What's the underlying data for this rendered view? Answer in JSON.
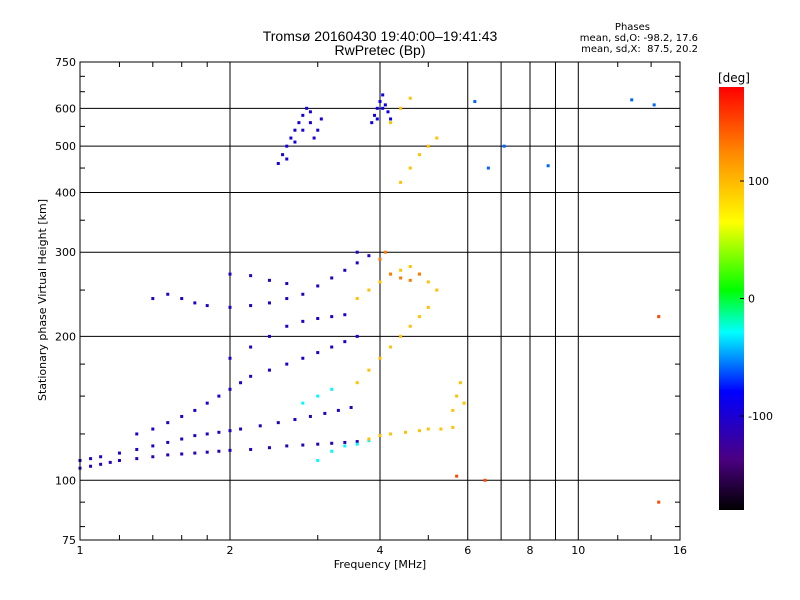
{
  "header": {
    "title": "Tromsø 20160430 19:40:00–19:41:43",
    "subtitle": "RwPretec (Bp)"
  },
  "phase_info": {
    "heading": "Phases",
    "line_o": "mean, sd,O: -98.2, 17.6",
    "line_x": "mean, sd,X:  87.5, 20.2"
  },
  "chart_data": {
    "type": "scatter",
    "xlabel": "Frequency [MHz]",
    "ylabel": "Stationary phase Virtual Height [km]",
    "x_scale": "log",
    "y_scale": "log",
    "xlim": [
      1,
      16
    ],
    "ylim": [
      75,
      750
    ],
    "x_ticks": [
      1,
      2,
      4,
      6,
      8,
      10,
      16
    ],
    "x_tick_labels": [
      "1",
      "2",
      "4",
      "6",
      "8",
      "10",
      "16"
    ],
    "x_gridlines": [
      1,
      2,
      4,
      6,
      7,
      8,
      9,
      10,
      16
    ],
    "y_ticks": [
      75,
      100,
      200,
      300,
      400,
      500,
      600,
      750
    ],
    "y_tick_labels": [
      "75",
      "100",
      "200",
      "300",
      "400",
      "500",
      "600",
      "750"
    ],
    "grid": true,
    "colorbar": {
      "label": "[deg]",
      "range": [
        -180,
        180
      ],
      "ticks": [
        100,
        0,
        -100
      ],
      "tick_labels": [
        "100",
        "0",
        "-100"
      ]
    },
    "series": [
      {
        "phase": -110,
        "points": [
          [
            1.0,
            106
          ],
          [
            1.05,
            107
          ],
          [
            1.1,
            108
          ],
          [
            1.15,
            109
          ],
          [
            1.2,
            110
          ],
          [
            1.3,
            111
          ],
          [
            1.4,
            112
          ],
          [
            1.5,
            113
          ],
          [
            1.6,
            113.5
          ],
          [
            1.7,
            114
          ],
          [
            1.8,
            114.5
          ],
          [
            1.9,
            115
          ],
          [
            2.0,
            115.5
          ],
          [
            2.2,
            116
          ],
          [
            2.4,
            117
          ],
          [
            2.6,
            118
          ],
          [
            2.8,
            118.5
          ],
          [
            3.0,
            119
          ],
          [
            3.2,
            119.5
          ],
          [
            3.4,
            120
          ],
          [
            3.6,
            120.5
          ]
        ]
      },
      {
        "phase": -105,
        "points": [
          [
            1.0,
            110
          ],
          [
            1.05,
            111
          ],
          [
            1.1,
            112
          ],
          [
            1.2,
            114
          ],
          [
            1.3,
            116
          ],
          [
            1.4,
            118
          ],
          [
            1.5,
            120
          ],
          [
            1.6,
            122
          ],
          [
            1.7,
            124
          ],
          [
            1.8,
            125
          ],
          [
            1.9,
            126
          ],
          [
            2.0,
            127
          ],
          [
            2.1,
            128
          ],
          [
            2.3,
            130
          ],
          [
            2.5,
            132
          ],
          [
            2.7,
            134
          ],
          [
            2.9,
            136
          ],
          [
            3.1,
            138
          ],
          [
            3.3,
            140
          ],
          [
            3.5,
            142
          ]
        ]
      },
      {
        "phase": -100,
        "points": [
          [
            1.3,
            125
          ],
          [
            1.4,
            128
          ],
          [
            1.5,
            132
          ],
          [
            1.6,
            136
          ],
          [
            1.7,
            140
          ],
          [
            1.8,
            145
          ],
          [
            1.9,
            150
          ],
          [
            2.0,
            155
          ],
          [
            2.1,
            160
          ],
          [
            2.2,
            165
          ],
          [
            2.4,
            170
          ],
          [
            2.6,
            175
          ],
          [
            2.8,
            180
          ],
          [
            3.0,
            185
          ],
          [
            3.2,
            190
          ],
          [
            3.4,
            195
          ],
          [
            3.6,
            200
          ],
          [
            2.0,
            180
          ],
          [
            2.2,
            190
          ],
          [
            2.4,
            200
          ],
          [
            2.6,
            210
          ],
          [
            2.8,
            215
          ],
          [
            3.0,
            218
          ],
          [
            3.2,
            220
          ],
          [
            3.4,
            222
          ]
        ]
      },
      {
        "phase": -105,
        "points": [
          [
            1.4,
            240
          ],
          [
            1.5,
            245
          ],
          [
            1.6,
            240
          ],
          [
            1.7,
            235
          ],
          [
            1.8,
            232
          ],
          [
            2.0,
            230
          ],
          [
            2.2,
            232
          ],
          [
            2.4,
            235
          ],
          [
            2.6,
            240
          ],
          [
            2.8,
            245
          ],
          [
            3.0,
            255
          ],
          [
            3.2,
            265
          ],
          [
            3.4,
            275
          ],
          [
            3.6,
            285
          ],
          [
            2.0,
            270
          ],
          [
            2.2,
            268
          ],
          [
            2.4,
            262
          ],
          [
            2.6,
            258
          ],
          [
            3.6,
            300
          ],
          [
            3.8,
            295
          ]
        ]
      },
      {
        "phase": -95,
        "points": [
          [
            2.5,
            460
          ],
          [
            2.55,
            480
          ],
          [
            2.6,
            500
          ],
          [
            2.65,
            520
          ],
          [
            2.7,
            540
          ],
          [
            2.75,
            560
          ],
          [
            2.8,
            580
          ],
          [
            2.85,
            600
          ],
          [
            2.9,
            560
          ],
          [
            2.95,
            520
          ],
          [
            3.0,
            540
          ],
          [
            3.05,
            570
          ],
          [
            2.6,
            470
          ],
          [
            2.7,
            510
          ],
          [
            2.8,
            540
          ],
          [
            2.9,
            590
          ]
        ]
      },
      {
        "phase": -90,
        "points": [
          [
            3.85,
            560
          ],
          [
            3.9,
            580
          ],
          [
            3.95,
            600
          ],
          [
            4.0,
            620
          ],
          [
            4.05,
            640
          ],
          [
            4.1,
            610
          ],
          [
            4.15,
            590
          ],
          [
            4.2,
            570
          ],
          [
            3.95,
            570
          ],
          [
            4.05,
            600
          ]
        ]
      },
      {
        "phase": -30,
        "points": [
          [
            3.0,
            110
          ],
          [
            3.2,
            115
          ],
          [
            3.4,
            118
          ],
          [
            3.6,
            119
          ],
          [
            3.8,
            121
          ],
          [
            2.8,
            145
          ],
          [
            3.0,
            150
          ],
          [
            3.2,
            155
          ]
        ]
      },
      {
        "phase": 95,
        "points": [
          [
            3.8,
            122
          ],
          [
            4.0,
            124
          ],
          [
            4.2,
            125
          ],
          [
            4.5,
            126
          ],
          [
            4.8,
            127
          ],
          [
            5.0,
            128
          ],
          [
            5.3,
            128
          ],
          [
            5.6,
            129
          ],
          [
            3.6,
            160
          ],
          [
            3.8,
            170
          ],
          [
            4.0,
            180
          ],
          [
            4.2,
            190
          ],
          [
            4.4,
            200
          ],
          [
            4.6,
            210
          ],
          [
            4.8,
            220
          ],
          [
            5.0,
            230
          ],
          [
            3.6,
            240
          ],
          [
            3.8,
            250
          ],
          [
            4.0,
            260
          ],
          [
            4.2,
            270
          ],
          [
            4.4,
            275
          ],
          [
            4.6,
            280
          ],
          [
            4.8,
            270
          ],
          [
            5.0,
            260
          ],
          [
            5.2,
            250
          ],
          [
            5.6,
            140
          ],
          [
            5.7,
            150
          ],
          [
            5.8,
            160
          ],
          [
            5.9,
            145
          ],
          [
            4.4,
            420
          ],
          [
            4.6,
            450
          ],
          [
            4.8,
            480
          ],
          [
            5.0,
            500
          ],
          [
            5.2,
            520
          ],
          [
            4.2,
            560
          ],
          [
            4.4,
            600
          ],
          [
            4.6,
            630
          ]
        ]
      },
      {
        "phase": 130,
        "points": [
          [
            4.2,
            270
          ],
          [
            4.4,
            265
          ],
          [
            4.6,
            262
          ],
          [
            4.8,
            270
          ],
          [
            4.0,
            290
          ],
          [
            4.1,
            300
          ]
        ]
      },
      {
        "phase": -60,
        "points": [
          [
            6.2,
            620
          ],
          [
            7.1,
            500
          ],
          [
            6.6,
            450
          ],
          [
            8.7,
            455
          ],
          [
            12.8,
            625
          ],
          [
            14.2,
            610
          ]
        ]
      },
      {
        "phase": 150,
        "points": [
          [
            14.5,
            220
          ],
          [
            14.5,
            90
          ],
          [
            6.5,
            100
          ],
          [
            5.7,
            102
          ]
        ]
      }
    ]
  },
  "colors": {
    "axis": "#000000",
    "grid": "#000000",
    "background": "#ffffff"
  }
}
